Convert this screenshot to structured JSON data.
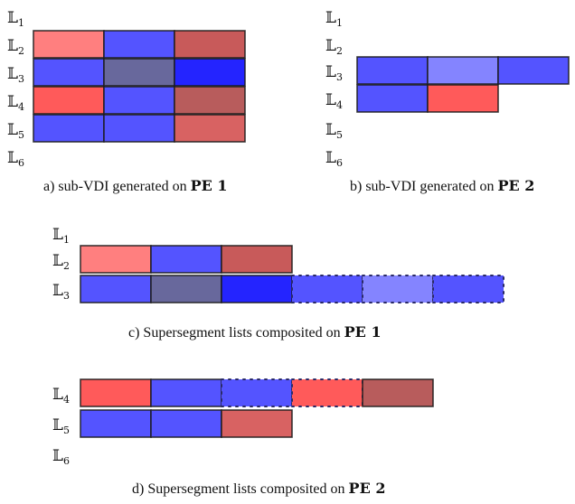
{
  "colors": {
    "red": "#ff5a5a",
    "blue": "#5454ff",
    "light_red": "#ff7f7f",
    "dark_red": "#c85a5a",
    "muted_blue": "#68689c",
    "deep_blue": "#2424ff",
    "light_blue": "#8484ff",
    "soft_red": "#d86262",
    "brown_red": "#b85c5c"
  },
  "panels": [
    {
      "id": "a",
      "levels": [
        {
          "symbol": "𝕃",
          "sub": "1",
          "cells": []
        },
        {
          "symbol": "𝕃",
          "sub": "2",
          "cells": [
            {
              "fill": "light_red",
              "border": "solid"
            },
            {
              "fill": "blue",
              "border": "solid"
            },
            {
              "fill": "dark_red",
              "border": "solid"
            }
          ]
        },
        {
          "symbol": "𝕃",
          "sub": "3",
          "cells": [
            {
              "fill": "blue",
              "border": "solid"
            },
            {
              "fill": "muted_blue",
              "border": "solid"
            },
            {
              "fill": "deep_blue",
              "border": "solid"
            }
          ]
        },
        {
          "symbol": "𝕃",
          "sub": "4",
          "cells": [
            {
              "fill": "red",
              "border": "solid"
            },
            {
              "fill": "blue",
              "border": "solid"
            },
            {
              "fill": "brown_red",
              "border": "solid"
            }
          ]
        },
        {
          "symbol": "𝕃",
          "sub": "5",
          "cells": [
            {
              "fill": "blue",
              "border": "solid"
            },
            {
              "fill": "blue",
              "border": "solid"
            },
            {
              "fill": "soft_red",
              "border": "solid"
            }
          ]
        },
        {
          "symbol": "𝕃",
          "sub": "6",
          "cells": []
        }
      ],
      "caption": {
        "text": "a) sub-VDI generated on",
        "bold": "PE 1"
      }
    },
    {
      "id": "b",
      "levels": [
        {
          "symbol": "𝕃",
          "sub": "1",
          "cells": []
        },
        {
          "symbol": "𝕃",
          "sub": "2",
          "cells": []
        },
        {
          "symbol": "𝕃",
          "sub": "3",
          "cells": [
            {
              "fill": "blue",
              "border": "solid"
            },
            {
              "fill": "light_blue",
              "border": "solid"
            },
            {
              "fill": "blue",
              "border": "solid"
            }
          ]
        },
        {
          "symbol": "𝕃",
          "sub": "4",
          "cells": [
            {
              "fill": "blue",
              "border": "solid"
            },
            {
              "fill": "red",
              "border": "solid"
            }
          ]
        },
        {
          "symbol": "𝕃",
          "sub": "5",
          "cells": []
        },
        {
          "symbol": "𝕃",
          "sub": "6",
          "cells": []
        }
      ],
      "caption": {
        "text": "b) sub-VDI generated on",
        "bold": "PE 2"
      }
    },
    {
      "id": "c",
      "levels": [
        {
          "symbol": "𝕃",
          "sub": "1",
          "cells": []
        },
        {
          "symbol": "𝕃",
          "sub": "2",
          "cells": [
            {
              "fill": "light_red",
              "border": "solid"
            },
            {
              "fill": "blue",
              "border": "solid"
            },
            {
              "fill": "dark_red",
              "border": "solid"
            }
          ]
        },
        {
          "symbol": "𝕃",
          "sub": "3",
          "cells": [
            {
              "fill": "blue",
              "border": "solid"
            },
            {
              "fill": "muted_blue",
              "border": "solid"
            },
            {
              "fill": "deep_blue",
              "border": "solid"
            },
            {
              "fill": "blue",
              "border": "dotted"
            },
            {
              "fill": "light_blue",
              "border": "dotted"
            },
            {
              "fill": "blue",
              "border": "dotted"
            }
          ]
        }
      ],
      "caption": {
        "text": "c) Supersegment lists composited on",
        "bold": "PE 1"
      }
    },
    {
      "id": "d",
      "levels": [
        {
          "symbol": "𝕃",
          "sub": "4",
          "cells": [
            {
              "fill": "red",
              "border": "solid"
            },
            {
              "fill": "blue",
              "border": "solid"
            },
            {
              "fill": "blue",
              "border": "dotted"
            },
            {
              "fill": "red",
              "border": "dotted"
            },
            {
              "fill": "brown_red",
              "border": "solid"
            }
          ]
        },
        {
          "symbol": "𝕃",
          "sub": "5",
          "cells": [
            {
              "fill": "blue",
              "border": "solid"
            },
            {
              "fill": "blue",
              "border": "solid"
            },
            {
              "fill": "soft_red",
              "border": "solid"
            }
          ]
        },
        {
          "symbol": "𝕃",
          "sub": "6",
          "cells": []
        }
      ],
      "caption": {
        "text": "d) Supersegment lists composited on",
        "bold": "PE 2"
      }
    }
  ]
}
